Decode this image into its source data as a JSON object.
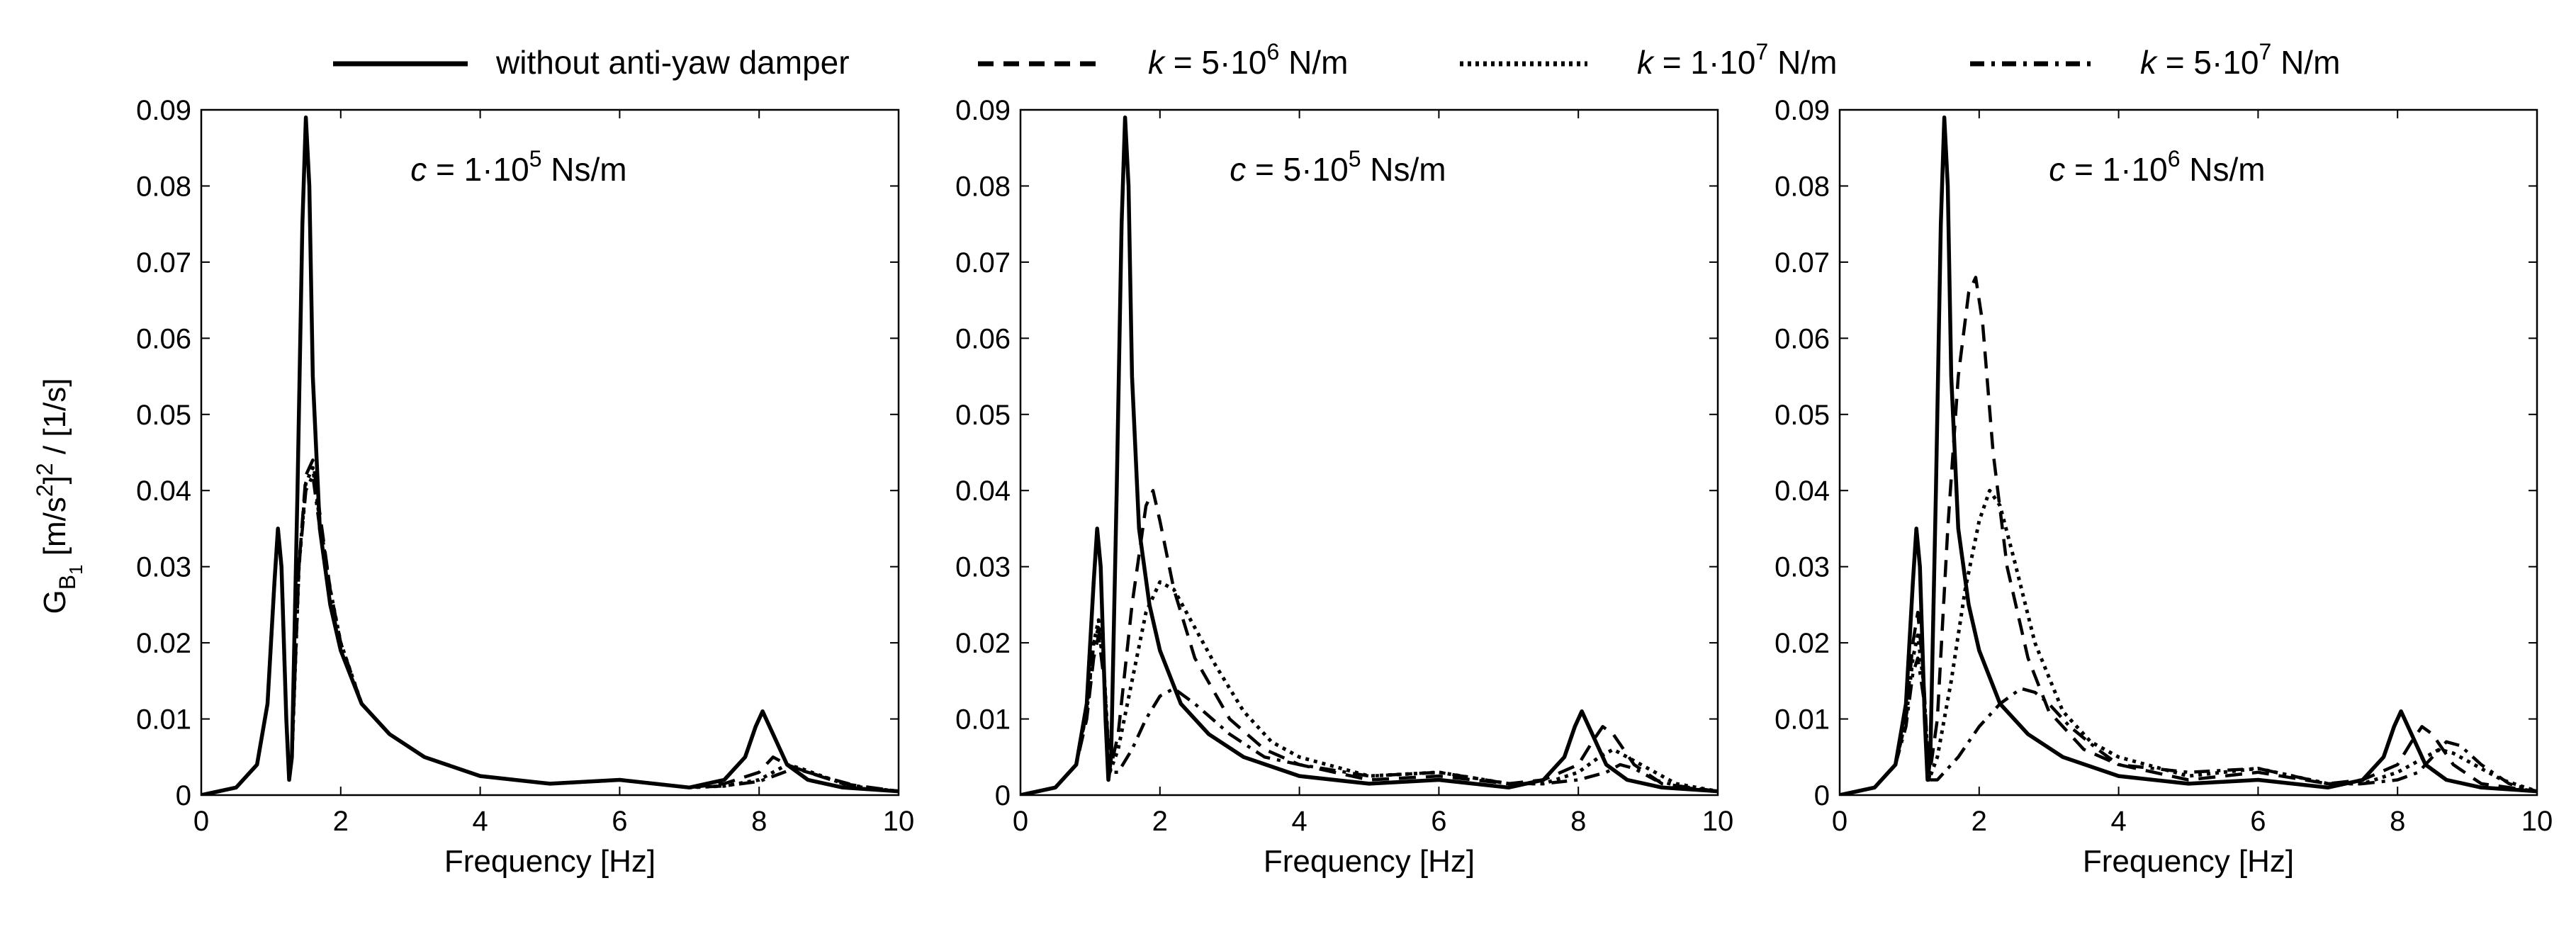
{
  "legend": {
    "items": [
      {
        "id": "none",
        "text": "without anti-yaw damper",
        "style": "solid"
      },
      {
        "id": "k1",
        "prefix": "k",
        "text_a": " = 5·10",
        "sup": "6",
        "text_b": " N/m",
        "style": "dashed"
      },
      {
        "id": "k2",
        "prefix": "k",
        "text_a": " = 1·10",
        "sup": "7",
        "text_b": " N/m",
        "style": "dotted"
      },
      {
        "id": "k3",
        "prefix": "k",
        "text_a": " = 5·10",
        "sup": "7",
        "text_b": " N/m",
        "style": "dashdot"
      }
    ]
  },
  "colors": {
    "line": "#000000",
    "background": "#ffffff"
  },
  "ylabel_parts": {
    "g": "G",
    "sub1": "B",
    "sub2": "1",
    "mid": " [m/s",
    "sup": "2",
    "rest": "]",
    "sup2": "2",
    "tail": " / [1/s]"
  },
  "chart_data": [
    {
      "type": "line",
      "param": {
        "prefix": "c",
        "text_a": " = 1·10",
        "sup": "5",
        "text_b": " Ns/m"
      },
      "xlabel": "Frequency [Hz]",
      "xlim": [
        0,
        10
      ],
      "ylim": [
        0,
        0.09
      ],
      "xticks": [
        "0",
        "2",
        "4",
        "6",
        "8",
        "10"
      ],
      "yticks": [
        "0",
        "0.01",
        "0.02",
        "0.03",
        "0.04",
        "0.05",
        "0.06",
        "0.07",
        "0.08",
        "0.09"
      ],
      "series": [
        {
          "name": "without anti-yaw damper",
          "style": "solid",
          "x": [
            0,
            0.5,
            0.8,
            0.95,
            1.05,
            1.1,
            1.15,
            1.22,
            1.26,
            1.3,
            1.38,
            1.45,
            1.5,
            1.55,
            1.6,
            1.7,
            1.85,
            2,
            2.3,
            2.7,
            3.2,
            4,
            5,
            6,
            7,
            7.5,
            7.8,
            7.95,
            8.05,
            8.2,
            8.4,
            8.7,
            9.2,
            10
          ],
          "y": [
            0,
            0.001,
            0.004,
            0.012,
            0.028,
            0.035,
            0.03,
            0.01,
            0.002,
            0.005,
            0.04,
            0.075,
            0.089,
            0.08,
            0.055,
            0.035,
            0.025,
            0.019,
            0.012,
            0.008,
            0.005,
            0.0025,
            0.0015,
            0.002,
            0.001,
            0.002,
            0.005,
            0.009,
            0.011,
            0.008,
            0.004,
            0.002,
            0.001,
            0.0005
          ]
        },
        {
          "name": "k = 5·10^6 N/m",
          "style": "dashed",
          "x": [
            0,
            0.5,
            0.8,
            0.95,
            1.05,
            1.1,
            1.15,
            1.22,
            1.26,
            1.3,
            1.4,
            1.5,
            1.6,
            1.7,
            1.85,
            2,
            2.3,
            2.7,
            3.2,
            4,
            5,
            6,
            7,
            7.5,
            8,
            8.1,
            8.2,
            8.4,
            8.7,
            9.2,
            10
          ],
          "y": [
            0,
            0.001,
            0.004,
            0.012,
            0.028,
            0.035,
            0.03,
            0.01,
            0.002,
            0.005,
            0.03,
            0.042,
            0.044,
            0.037,
            0.027,
            0.02,
            0.012,
            0.008,
            0.005,
            0.0025,
            0.0015,
            0.002,
            0.001,
            0.0015,
            0.003,
            0.004,
            0.005,
            0.004,
            0.003,
            0.0015,
            0.0005
          ]
        },
        {
          "name": "k = 1·10^7 N/m",
          "style": "dotted",
          "x": [
            0,
            0.5,
            0.8,
            0.95,
            1.05,
            1.1,
            1.15,
            1.22,
            1.26,
            1.3,
            1.4,
            1.5,
            1.6,
            1.7,
            1.85,
            2,
            2.3,
            2.7,
            3.2,
            4,
            5,
            6,
            7,
            7.5,
            8,
            8.2,
            8.4,
            8.6,
            8.9,
            9.3,
            10
          ],
          "y": [
            0,
            0.001,
            0.004,
            0.012,
            0.028,
            0.035,
            0.03,
            0.01,
            0.002,
            0.005,
            0.03,
            0.041,
            0.043,
            0.036,
            0.027,
            0.02,
            0.012,
            0.008,
            0.005,
            0.0025,
            0.0015,
            0.002,
            0.001,
            0.0012,
            0.002,
            0.003,
            0.004,
            0.0035,
            0.0025,
            0.0012,
            0.0005
          ]
        },
        {
          "name": "k = 5·10^7 N/m",
          "style": "dashdot",
          "x": [
            0,
            0.5,
            0.8,
            0.95,
            1.05,
            1.1,
            1.15,
            1.22,
            1.26,
            1.3,
            1.4,
            1.5,
            1.6,
            1.7,
            1.85,
            2,
            2.3,
            2.7,
            3.2,
            4,
            5,
            6,
            7,
            7.5,
            8,
            8.3,
            8.5,
            8.7,
            9,
            9.4,
            10
          ],
          "y": [
            0,
            0.001,
            0.004,
            0.012,
            0.028,
            0.035,
            0.03,
            0.01,
            0.002,
            0.005,
            0.03,
            0.04,
            0.042,
            0.035,
            0.026,
            0.019,
            0.012,
            0.008,
            0.005,
            0.0025,
            0.0015,
            0.002,
            0.001,
            0.0012,
            0.0018,
            0.0028,
            0.0035,
            0.003,
            0.0022,
            0.0012,
            0.0005
          ]
        }
      ]
    },
    {
      "type": "line",
      "param": {
        "prefix": "c",
        "text_a": " = 5·10",
        "sup": "5",
        "text_b": " Ns/m"
      },
      "xlabel": "Frequency [Hz]",
      "xlim": [
        0,
        10
      ],
      "ylim": [
        0,
        0.09
      ],
      "xticks": [
        "0",
        "2",
        "4",
        "6",
        "8",
        "10"
      ],
      "yticks": [
        "0",
        "0.01",
        "0.02",
        "0.03",
        "0.04",
        "0.05",
        "0.06",
        "0.07",
        "0.08",
        "0.09"
      ],
      "series": [
        {
          "name": "without anti-yaw damper",
          "style": "solid",
          "x": [
            0,
            0.5,
            0.8,
            0.95,
            1.05,
            1.1,
            1.15,
            1.22,
            1.26,
            1.3,
            1.38,
            1.45,
            1.5,
            1.55,
            1.6,
            1.7,
            1.85,
            2,
            2.3,
            2.7,
            3.2,
            4,
            5,
            6,
            7,
            7.5,
            7.8,
            7.95,
            8.05,
            8.2,
            8.4,
            8.7,
            9.2,
            10
          ],
          "y": [
            0,
            0.001,
            0.004,
            0.012,
            0.028,
            0.035,
            0.03,
            0.01,
            0.002,
            0.005,
            0.04,
            0.075,
            0.089,
            0.08,
            0.055,
            0.035,
            0.025,
            0.019,
            0.012,
            0.008,
            0.005,
            0.0025,
            0.0015,
            0.002,
            0.001,
            0.002,
            0.005,
            0.009,
            0.011,
            0.008,
            0.004,
            0.002,
            0.001,
            0.0005
          ]
        },
        {
          "name": "k = 5·10^6 N/m",
          "style": "dashed",
          "x": [
            0,
            0.5,
            0.8,
            0.95,
            1.05,
            1.12,
            1.2,
            1.28,
            1.4,
            1.6,
            1.8,
            1.9,
            2,
            2.2,
            2.5,
            3,
            3.5,
            4,
            5,
            6,
            7,
            7.5,
            8,
            8.2,
            8.35,
            8.5,
            8.8,
            9.2,
            10
          ],
          "y": [
            0,
            0.001,
            0.004,
            0.01,
            0.018,
            0.021,
            0.015,
            0.003,
            0.008,
            0.025,
            0.038,
            0.04,
            0.036,
            0.027,
            0.018,
            0.01,
            0.006,
            0.004,
            0.002,
            0.0025,
            0.0015,
            0.002,
            0.004,
            0.007,
            0.009,
            0.008,
            0.004,
            0.0015,
            0.0005
          ]
        },
        {
          "name": "k = 1·10^7 N/m",
          "style": "dotted",
          "x": [
            0,
            0.5,
            0.8,
            0.95,
            1.05,
            1.12,
            1.2,
            1.28,
            1.4,
            1.6,
            1.8,
            2,
            2.2,
            2.5,
            2.8,
            3.2,
            3.6,
            4,
            5,
            6,
            7,
            7.5,
            8,
            8.3,
            8.5,
            8.7,
            9,
            9.4,
            10
          ],
          "y": [
            0,
            0.001,
            0.004,
            0.011,
            0.02,
            0.023,
            0.016,
            0.003,
            0.006,
            0.015,
            0.024,
            0.028,
            0.027,
            0.022,
            0.017,
            0.011,
            0.007,
            0.005,
            0.0025,
            0.003,
            0.0015,
            0.0015,
            0.003,
            0.005,
            0.006,
            0.005,
            0.0035,
            0.0015,
            0.0005
          ]
        },
        {
          "name": "k = 5·10^7 N/m",
          "style": "dashdot",
          "x": [
            0,
            0.5,
            0.8,
            0.95,
            1.05,
            1.12,
            1.2,
            1.28,
            1.4,
            1.6,
            1.8,
            2,
            2.2,
            2.5,
            3,
            3.5,
            4,
            5,
            6,
            7,
            7.5,
            8,
            8.4,
            8.6,
            8.8,
            9.1,
            9.5,
            10
          ],
          "y": [
            0,
            0.001,
            0.004,
            0.011,
            0.02,
            0.022,
            0.016,
            0.003,
            0.003,
            0.006,
            0.01,
            0.013,
            0.014,
            0.012,
            0.008,
            0.005,
            0.004,
            0.0025,
            0.003,
            0.0015,
            0.0015,
            0.002,
            0.003,
            0.004,
            0.0035,
            0.002,
            0.001,
            0.0005
          ]
        }
      ]
    },
    {
      "type": "line",
      "param": {
        "prefix": "c",
        "text_a": " = 1·10",
        "sup": "6",
        "text_b": " Ns/m"
      },
      "xlabel": "Frequency [Hz]",
      "xlim": [
        0,
        10
      ],
      "ylim": [
        0,
        0.09
      ],
      "xticks": [
        "0",
        "2",
        "4",
        "6",
        "8",
        "10"
      ],
      "yticks": [
        "0",
        "0.01",
        "0.02",
        "0.03",
        "0.04",
        "0.05",
        "0.06",
        "0.07",
        "0.08",
        "0.09"
      ],
      "series": [
        {
          "name": "without anti-yaw damper",
          "style": "solid",
          "x": [
            0,
            0.5,
            0.8,
            0.95,
            1.05,
            1.1,
            1.15,
            1.22,
            1.26,
            1.3,
            1.38,
            1.45,
            1.5,
            1.55,
            1.6,
            1.7,
            1.85,
            2,
            2.3,
            2.7,
            3.2,
            4,
            5,
            6,
            7,
            7.5,
            7.8,
            7.95,
            8.05,
            8.2,
            8.4,
            8.7,
            9.2,
            10
          ],
          "y": [
            0,
            0.001,
            0.004,
            0.012,
            0.028,
            0.035,
            0.03,
            0.01,
            0.002,
            0.005,
            0.04,
            0.075,
            0.089,
            0.08,
            0.055,
            0.035,
            0.025,
            0.019,
            0.012,
            0.008,
            0.005,
            0.0025,
            0.0015,
            0.002,
            0.001,
            0.002,
            0.005,
            0.009,
            0.011,
            0.008,
            0.004,
            0.002,
            0.001,
            0.0005
          ]
        },
        {
          "name": "k = 5·10^6 N/m",
          "style": "dashed",
          "x": [
            0,
            0.5,
            0.8,
            0.95,
            1.05,
            1.12,
            1.2,
            1.28,
            1.4,
            1.55,
            1.7,
            1.85,
            1.95,
            2.05,
            2.2,
            2.4,
            2.7,
            3,
            3.5,
            4,
            5,
            6,
            7,
            7.5,
            8,
            8.2,
            8.35,
            8.5,
            8.8,
            9.2,
            10
          ],
          "y": [
            0,
            0.001,
            0.004,
            0.01,
            0.02,
            0.024,
            0.016,
            0.002,
            0.01,
            0.035,
            0.055,
            0.066,
            0.068,
            0.062,
            0.045,
            0.03,
            0.018,
            0.011,
            0.006,
            0.004,
            0.002,
            0.003,
            0.0015,
            0.002,
            0.004,
            0.007,
            0.009,
            0.008,
            0.004,
            0.0015,
            0.0005
          ]
        },
        {
          "name": "k = 1·10^7 N/m",
          "style": "dotted",
          "x": [
            0,
            0.5,
            0.8,
            0.95,
            1.05,
            1.12,
            1.2,
            1.28,
            1.4,
            1.6,
            1.8,
            2,
            2.15,
            2.3,
            2.5,
            2.8,
            3.2,
            3.6,
            4,
            5,
            6,
            7,
            7.5,
            8,
            8.4,
            8.6,
            8.8,
            9.1,
            9.5,
            10
          ],
          "y": [
            0,
            0.001,
            0.004,
            0.01,
            0.018,
            0.021,
            0.015,
            0.002,
            0.005,
            0.015,
            0.027,
            0.036,
            0.04,
            0.038,
            0.031,
            0.02,
            0.011,
            0.007,
            0.005,
            0.0025,
            0.0035,
            0.0015,
            0.0015,
            0.003,
            0.005,
            0.006,
            0.0055,
            0.004,
            0.002,
            0.0005
          ]
        },
        {
          "name": "k = 5·10^7 N/m",
          "style": "dashdot",
          "x": [
            0,
            0.5,
            0.8,
            0.95,
            1.05,
            1.12,
            1.2,
            1.28,
            1.4,
            1.7,
            2,
            2.3,
            2.6,
            2.8,
            3,
            3.3,
            3.7,
            4,
            5,
            6,
            7,
            7.5,
            8,
            8.3,
            8.5,
            8.7,
            8.9,
            9.2,
            9.6,
            10
          ],
          "y": [
            0,
            0.001,
            0.004,
            0.009,
            0.016,
            0.018,
            0.013,
            0.002,
            0.002,
            0.005,
            0.009,
            0.012,
            0.014,
            0.0135,
            0.012,
            0.009,
            0.006,
            0.004,
            0.003,
            0.0035,
            0.0015,
            0.0015,
            0.002,
            0.003,
            0.005,
            0.007,
            0.0065,
            0.004,
            0.0015,
            0.0005
          ]
        }
      ]
    }
  ]
}
